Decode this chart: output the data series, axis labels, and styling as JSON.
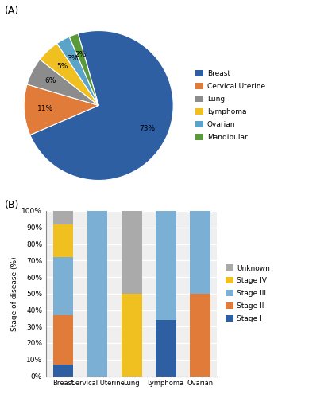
{
  "pie_labels": [
    "Breast",
    "Cervical Uterine",
    "Lung",
    "Lymphoma",
    "Ovarian",
    "Mandibular"
  ],
  "pie_values": [
    73,
    11,
    6,
    5,
    3,
    2
  ],
  "pie_colors": [
    "#2E5FA3",
    "#E07B39",
    "#8C8C8C",
    "#F0C020",
    "#5BA3C9",
    "#5A9A3A"
  ],
  "pie_startangle": -254,
  "bar_categories": [
    "Breast",
    "Cervical Uterine",
    "Lung",
    "Lymphoma",
    "Ovarian"
  ],
  "bar_stage_labels": [
    "Stage I",
    "Stage II",
    "Stage III",
    "Stage IV",
    "Unknown"
  ],
  "bar_stage_colors": [
    "#2E5FA3",
    "#E07B39",
    "#7BAFD4",
    "#F0C020",
    "#AAAAAA"
  ],
  "bar_data": {
    "Stage I": [
      7,
      0,
      0,
      34,
      0
    ],
    "Stage II": [
      30,
      0,
      0,
      0,
      50
    ],
    "Stage III": [
      35,
      100,
      0,
      66,
      50
    ],
    "Stage IV": [
      20,
      0,
      50,
      0,
      0
    ],
    "Unknown": [
      8,
      0,
      50,
      0,
      0
    ]
  },
  "bar_ylabel": "Stage of disease (%)",
  "bar_yticks": [
    0,
    10,
    20,
    30,
    40,
    50,
    60,
    70,
    80,
    90,
    100
  ],
  "bar_ytick_labels": [
    "0%",
    "10%",
    "20%",
    "30%",
    "40%",
    "50%",
    "60%",
    "70%",
    "80%",
    "90%",
    "100%"
  ],
  "label_A": "(A)",
  "label_B": "(B)"
}
